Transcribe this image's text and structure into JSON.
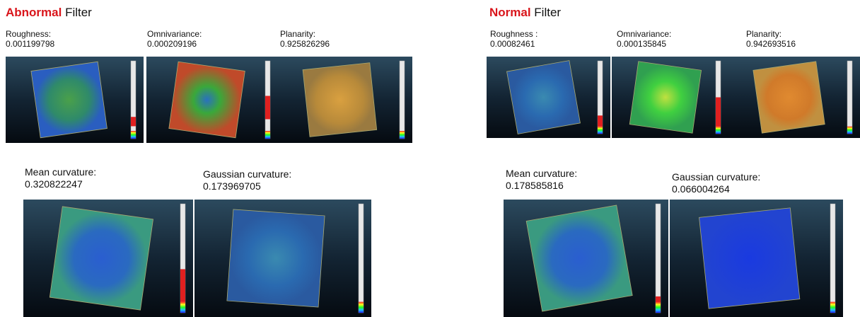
{
  "panels": [
    {
      "title_highlight": "Abnormal",
      "title_rest": "Filter",
      "metrics": [
        {
          "label": "Roughness:",
          "value": "0.001199798"
        },
        {
          "label": "Omnivariance:",
          "value": "0.000209196"
        },
        {
          "label": "Planarity:",
          "value": "0.925826296"
        },
        {
          "label": "Mean curvature:",
          "value": "0.320822247"
        },
        {
          "label": "Gaussian curvature:",
          "value": "0.173969705"
        }
      ]
    },
    {
      "title_highlight": "Normal",
      "title_rest": "Filter",
      "metrics": [
        {
          "label": "Roughness :",
          "value": "0.00082461"
        },
        {
          "label": "Omnivariance:",
          "value": "0.000135845"
        },
        {
          "label": "Planarity:",
          "value": "0.942693516"
        },
        {
          "label": "Mean curvature:",
          "value": "0.178585816"
        },
        {
          "label": "Gaussian curvature:",
          "value": "0.066004264"
        }
      ]
    }
  ]
}
